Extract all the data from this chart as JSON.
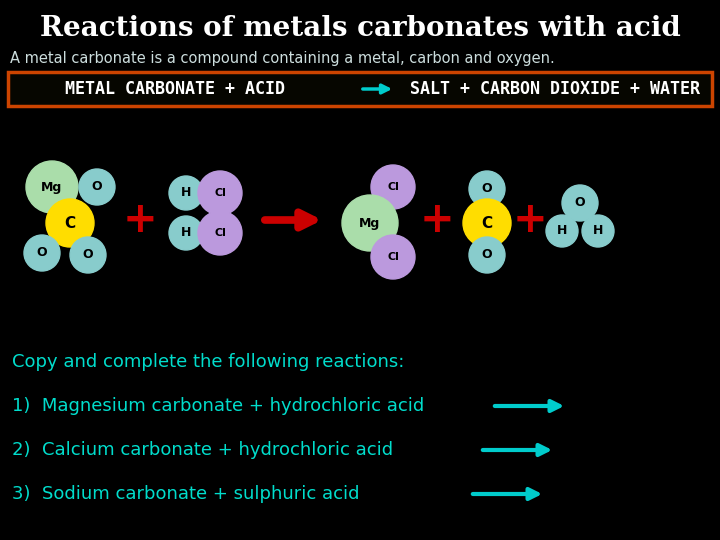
{
  "title": "Reactions of metals carbonates with acid",
  "subtitle": "A metal carbonate is a compound containing a metal, carbon and oxygen.",
  "eq_left": "METAL CARBONATE + ACID",
  "eq_right": "SALT + CARBON DIOXIDE + WATER",
  "bg_color": "#000000",
  "title_color": "#ffffff",
  "subtitle_color": "#ccdddd",
  "eq_box_border": "#cc4400",
  "eq_box_bg": "#060600",
  "eq_text_color": "#ffffff",
  "arrow_cyan": "#00cccc",
  "arrow_red": "#cc0000",
  "plus_color": "#cc0000",
  "bottom_text_color": "#00ddcc",
  "bottom_title": "Copy and complete the following reactions:",
  "bottom_items": [
    "1)  Magnesium carbonate + hydrochloric acid",
    "2)  Calcium carbonate + hydrochloric acid",
    "3)  Sodium carbonate + sulphuric acid"
  ],
  "col_Mg": "#aaddaa",
  "col_O": "#88cccc",
  "col_C": "#ffdd00",
  "col_H": "#88cccc",
  "col_Cl": "#bb99dd"
}
